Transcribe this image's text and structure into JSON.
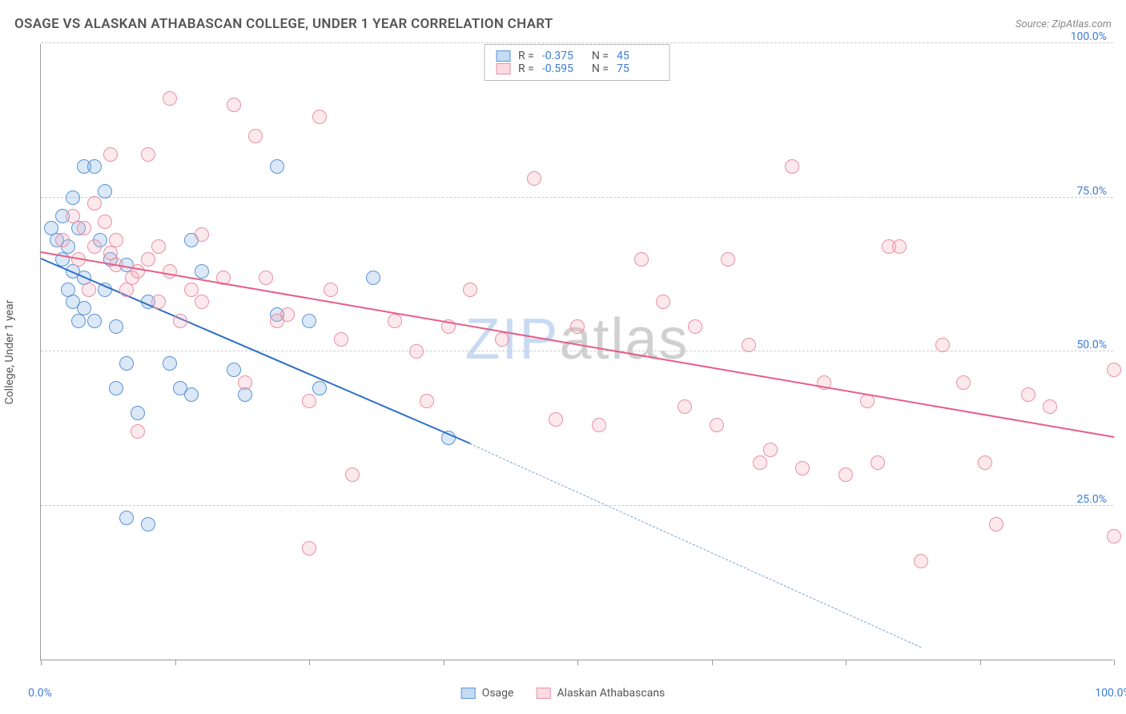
{
  "title": "OSAGE VS ALASKAN ATHABASCAN COLLEGE, UNDER 1 YEAR CORRELATION CHART",
  "source": "Source: ZipAtlas.com",
  "ylabel": "College, Under 1 year",
  "watermark_a": "ZIP",
  "watermark_b": "atlas",
  "chart": {
    "type": "scatter",
    "xlim": [
      0,
      100
    ],
    "ylim": [
      0,
      100
    ],
    "background_color": "#ffffff",
    "grid_color": "#cccccc",
    "axis_color": "#999999",
    "tick_label_color": "#3b7dd8",
    "ytick_values": [
      25,
      50,
      75,
      100
    ],
    "ytick_labels": [
      "25.0%",
      "50.0%",
      "75.0%",
      "100.0%"
    ],
    "xtick_positions": [
      0,
      12.5,
      25,
      37.5,
      50,
      62.5,
      75,
      87.5,
      100
    ],
    "x_axis_labels": [
      {
        "pos": 0,
        "text": "0.0%"
      },
      {
        "pos": 100,
        "text": "100.0%"
      }
    ],
    "marker_radius": 9,
    "marker_border_width": 1.2,
    "marker_fill_opacity": 0.25
  },
  "series": [
    {
      "name": "Osage",
      "color": "#6fa3e0",
      "border_color": "#5b94d6",
      "R_label": "R =",
      "R": "-0.375",
      "N_label": "N =",
      "N": "45",
      "trend": {
        "x1": 0,
        "y1": 65,
        "x2": 40,
        "y2": 35,
        "solid": true,
        "color": "#2f6fc7"
      },
      "trend_ext": {
        "x1": 40,
        "y1": 35,
        "x2": 82,
        "y2": 2,
        "color": "#6fa3e0"
      },
      "points": [
        [
          1,
          70
        ],
        [
          1.5,
          68
        ],
        [
          2,
          72
        ],
        [
          2,
          65
        ],
        [
          2.5,
          67
        ],
        [
          2.5,
          60
        ],
        [
          3,
          75
        ],
        [
          3,
          63
        ],
        [
          3,
          58
        ],
        [
          3.5,
          55
        ],
        [
          3.5,
          70
        ],
        [
          4,
          62
        ],
        [
          4,
          57
        ],
        [
          4,
          80
        ],
        [
          5,
          80
        ],
        [
          5,
          55
        ],
        [
          5.5,
          68
        ],
        [
          6,
          76
        ],
        [
          6,
          60
        ],
        [
          6.5,
          65
        ],
        [
          7,
          54
        ],
        [
          7,
          44
        ],
        [
          8,
          64
        ],
        [
          8,
          48
        ],
        [
          8,
          23
        ],
        [
          9,
          40
        ],
        [
          10,
          58
        ],
        [
          10,
          22
        ],
        [
          12,
          48
        ],
        [
          13,
          44
        ],
        [
          14,
          68
        ],
        [
          14,
          43
        ],
        [
          15,
          63
        ],
        [
          18,
          47
        ],
        [
          19,
          43
        ],
        [
          22,
          80
        ],
        [
          22,
          56
        ],
        [
          25,
          55
        ],
        [
          26,
          44
        ],
        [
          31,
          62
        ],
        [
          38,
          36
        ]
      ]
    },
    {
      "name": "Alaskan Athabascans",
      "color": "#f4a6b8",
      "border_color": "#ea8fa5",
      "R_label": "R =",
      "R": "-0.595",
      "N_label": "N =",
      "N": "75",
      "trend": {
        "x1": 0,
        "y1": 66,
        "x2": 100,
        "y2": 36,
        "solid": true,
        "color": "#e75d87"
      },
      "points": [
        [
          2,
          68
        ],
        [
          3,
          72
        ],
        [
          3.5,
          65
        ],
        [
          4,
          70
        ],
        [
          4.5,
          60
        ],
        [
          5,
          67
        ],
        [
          5,
          74
        ],
        [
          6,
          71
        ],
        [
          6.5,
          66
        ],
        [
          6.5,
          82
        ],
        [
          7,
          64
        ],
        [
          7,
          68
        ],
        [
          8,
          60
        ],
        [
          8.5,
          62
        ],
        [
          9,
          63
        ],
        [
          9,
          37
        ],
        [
          10,
          82
        ],
        [
          10,
          65
        ],
        [
          11,
          67
        ],
        [
          11,
          58
        ],
        [
          12,
          63
        ],
        [
          12,
          91
        ],
        [
          13,
          55
        ],
        [
          14,
          60
        ],
        [
          15,
          58
        ],
        [
          15,
          69
        ],
        [
          17,
          62
        ],
        [
          18,
          90
        ],
        [
          19,
          45
        ],
        [
          20,
          85
        ],
        [
          21,
          62
        ],
        [
          22,
          55
        ],
        [
          23,
          56
        ],
        [
          25,
          42
        ],
        [
          25,
          18
        ],
        [
          26,
          88
        ],
        [
          27,
          60
        ],
        [
          28,
          52
        ],
        [
          29,
          30
        ],
        [
          33,
          55
        ],
        [
          35,
          50
        ],
        [
          36,
          42
        ],
        [
          38,
          54
        ],
        [
          40,
          60
        ],
        [
          43,
          52
        ],
        [
          46,
          78
        ],
        [
          48,
          39
        ],
        [
          50,
          54
        ],
        [
          52,
          38
        ],
        [
          56,
          65
        ],
        [
          58,
          58
        ],
        [
          60,
          41
        ],
        [
          61,
          54
        ],
        [
          63,
          38
        ],
        [
          64,
          65
        ],
        [
          66,
          51
        ],
        [
          67,
          32
        ],
        [
          68,
          34
        ],
        [
          70,
          80
        ],
        [
          71,
          31
        ],
        [
          73,
          45
        ],
        [
          75,
          30
        ],
        [
          77,
          42
        ],
        [
          78,
          32
        ],
        [
          79,
          67
        ],
        [
          80,
          67
        ],
        [
          82,
          16
        ],
        [
          84,
          51
        ],
        [
          86,
          45
        ],
        [
          88,
          32
        ],
        [
          89,
          22
        ],
        [
          92,
          43
        ],
        [
          94,
          41
        ],
        [
          100,
          47
        ],
        [
          100,
          20
        ]
      ]
    }
  ],
  "bottom_legend": [
    {
      "label": "Osage",
      "color": "#6fa3e0",
      "border": "#5b94d6"
    },
    {
      "label": "Alaskan Athabascans",
      "color": "#f4a6b8",
      "border": "#ea8fa5"
    }
  ]
}
